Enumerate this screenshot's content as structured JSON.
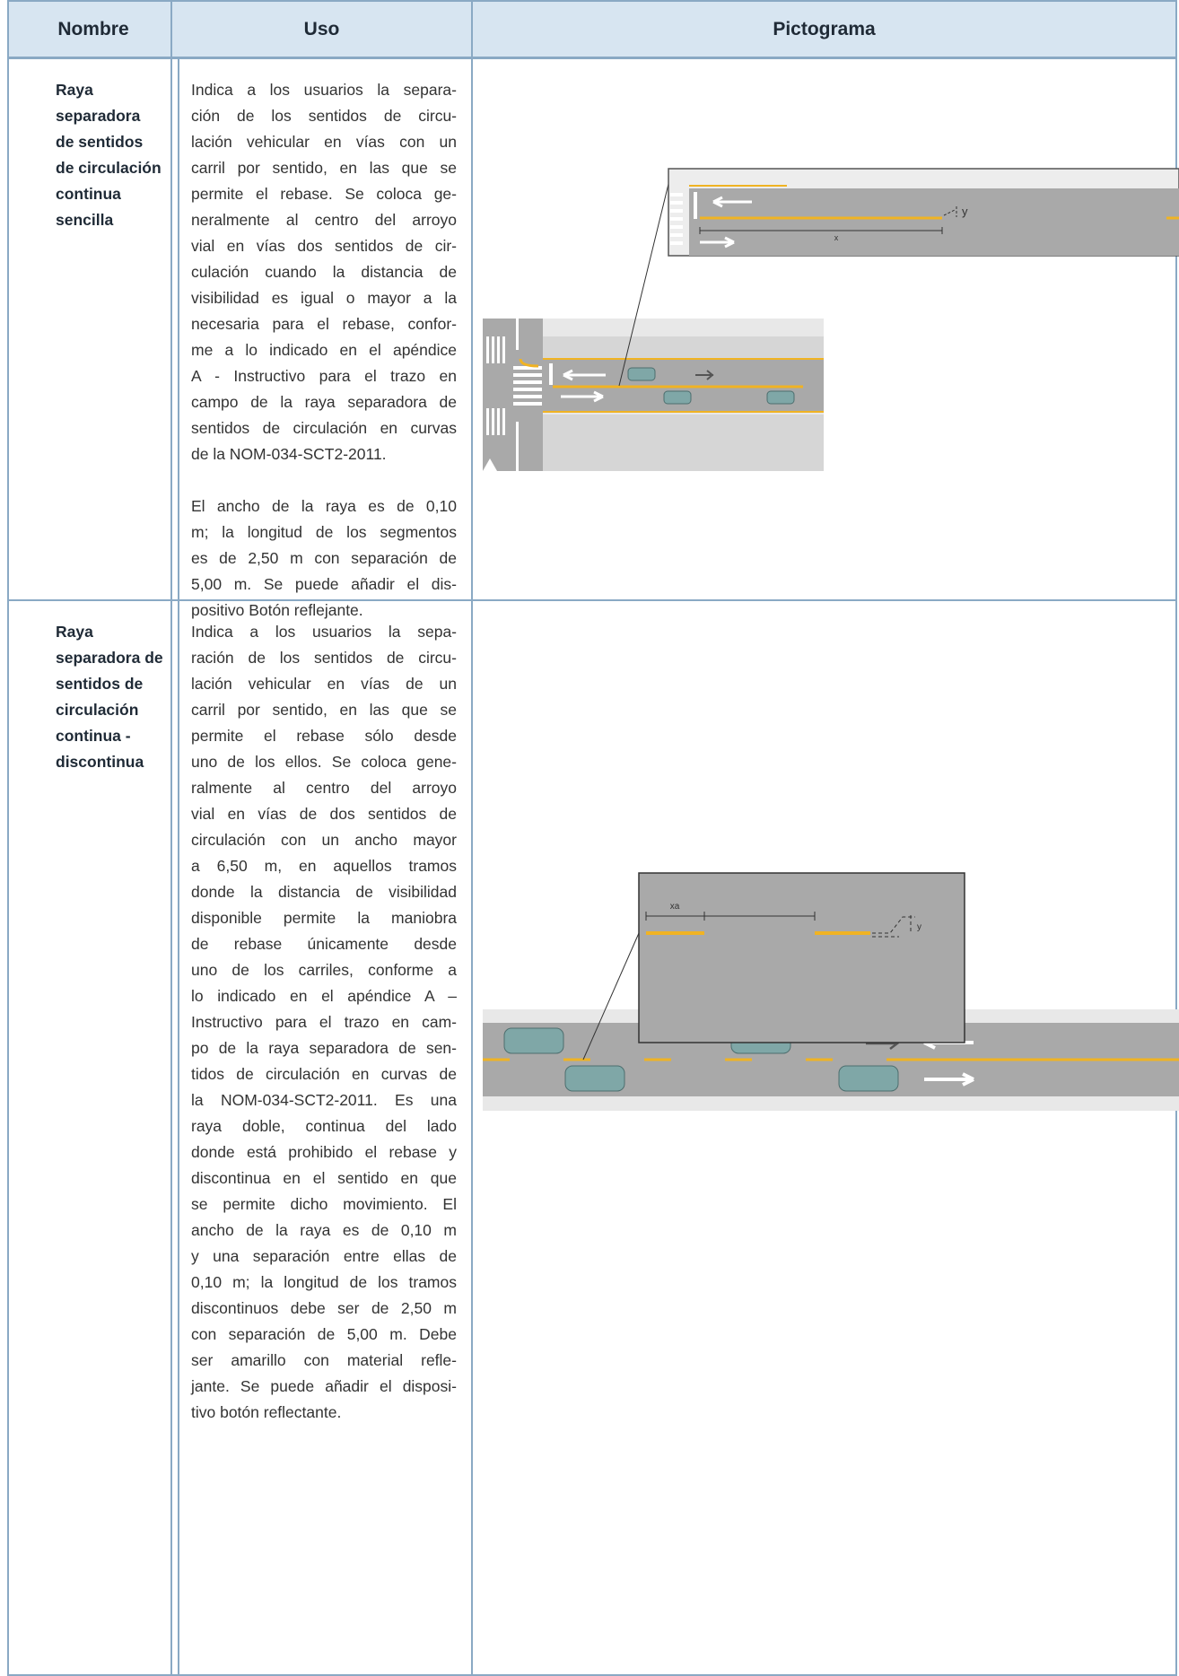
{
  "header": {
    "columns": [
      "Nombre",
      "Uso",
      "Pictograma"
    ]
  },
  "rows": [
    {
      "nombre": [
        "Raya",
        "separadora",
        "de sentidos",
        "de circulación",
        "continua",
        "sencilla"
      ],
      "uso": [
        [
          "Indica a los usuarios la separa-",
          "ción de los sentidos de circu-",
          "lación vehicular en vías con un",
          "carril por sentido, en las que se",
          "permite el rebase. Se coloca ge-",
          "neralmente al centro del arroyo",
          "vial en vías dos sentidos de cir-",
          "culación cuando la distancia de",
          "visibilidad es igual o mayor a la",
          "necesaria para el rebase, confor-",
          "me a lo indicado en el apéndice",
          "A - Instructivo para el trazo en",
          "campo de la raya separadora de",
          "sentidos de circulación en curvas",
          "de la NOM-034-SCT2-2011."
        ],
        [
          "El ancho de la raya es de 0,10",
          "m; la longitud de los segmentos",
          "es de 2,50 m con separación de",
          "5,00 m. Se puede añadir el dis-",
          "positivo Botón reflejante."
        ]
      ],
      "pictograma": {
        "labels": [
          "y",
          "x"
        ]
      }
    },
    {
      "nombre": [
        "Raya",
        "separadora de",
        "sentidos de",
        "circulación",
        "continua -",
        "discontinua"
      ],
      "uso": [
        [
          "Indica a los usuarios la sepa-",
          "ración de los sentidos de circu-",
          "lación vehicular en vías de un",
          "carril por sentido, en las que se",
          "permite el rebase sólo desde",
          "uno de los ellos. Se coloca gene-",
          "ralmente al centro del arroyo",
          "vial en vías de dos sentidos de",
          "circulación con un ancho mayor",
          "a 6,50 m, en aquellos tramos",
          "donde la distancia de visibilidad",
          "disponible permite la maniobra",
          "de rebase únicamente desde",
          "uno de los carriles, conforme a",
          "lo indicado en el apéndice A –",
          "Instructivo para el trazo en cam-",
          "po de la raya separadora de sen-",
          "tidos de circulación en curvas de",
          "la NOM-034-SCT2-2011. Es una",
          "raya doble, continua del lado",
          "donde está prohibido el rebase y",
          "discontinua en el sentido en que",
          "se permite dicho movimiento. El",
          "ancho de la raya es de 0,10 m",
          "y una separación entre ellas de",
          "0,10 m; la longitud de los tramos",
          "discontinuos debe ser de 2,50 m",
          "con separación de 5,00 m. Debe",
          "ser amarillo con material refle-",
          "jante. Se puede añadir el disposi-",
          "tivo botón reflectante."
        ]
      ],
      "pictograma": {
        "labels": [
          "xa",
          "y"
        ]
      }
    }
  ]
}
